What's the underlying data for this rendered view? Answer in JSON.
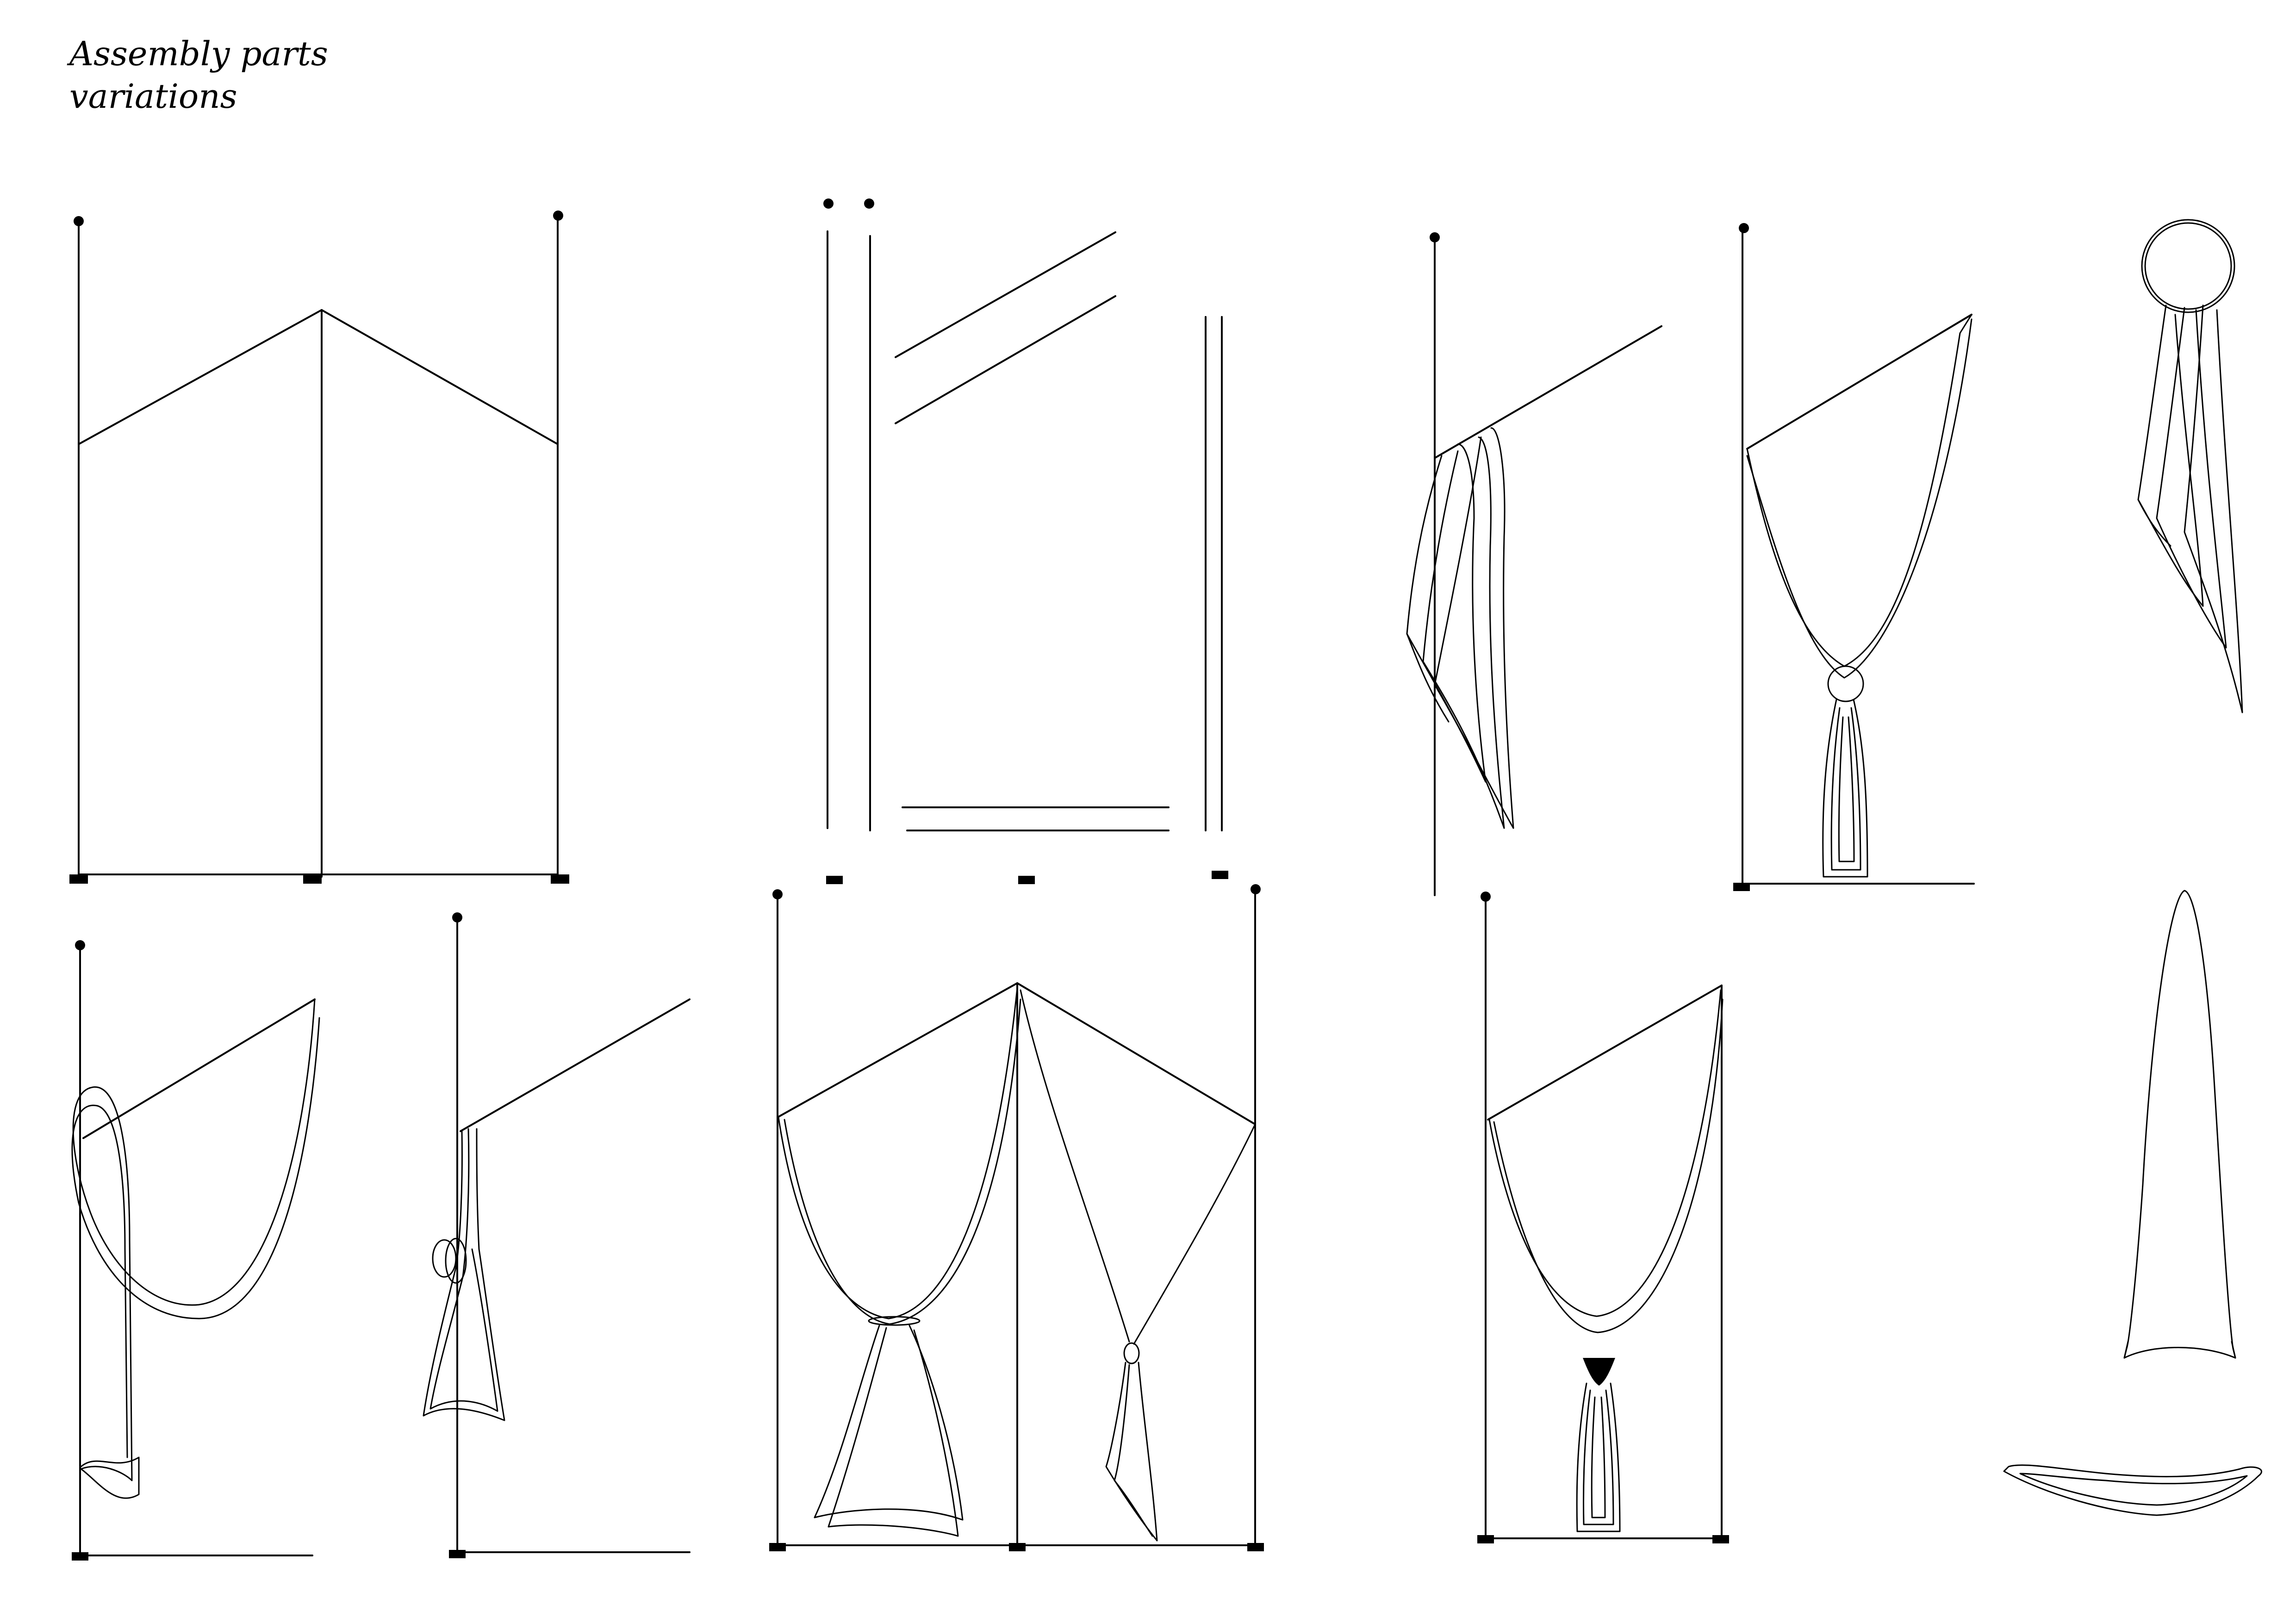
{
  "title": {
    "line1": "Assembly parts",
    "line2": "variations"
  },
  "colors": {
    "ink": "#000000",
    "paper": "#ffffff"
  }
}
